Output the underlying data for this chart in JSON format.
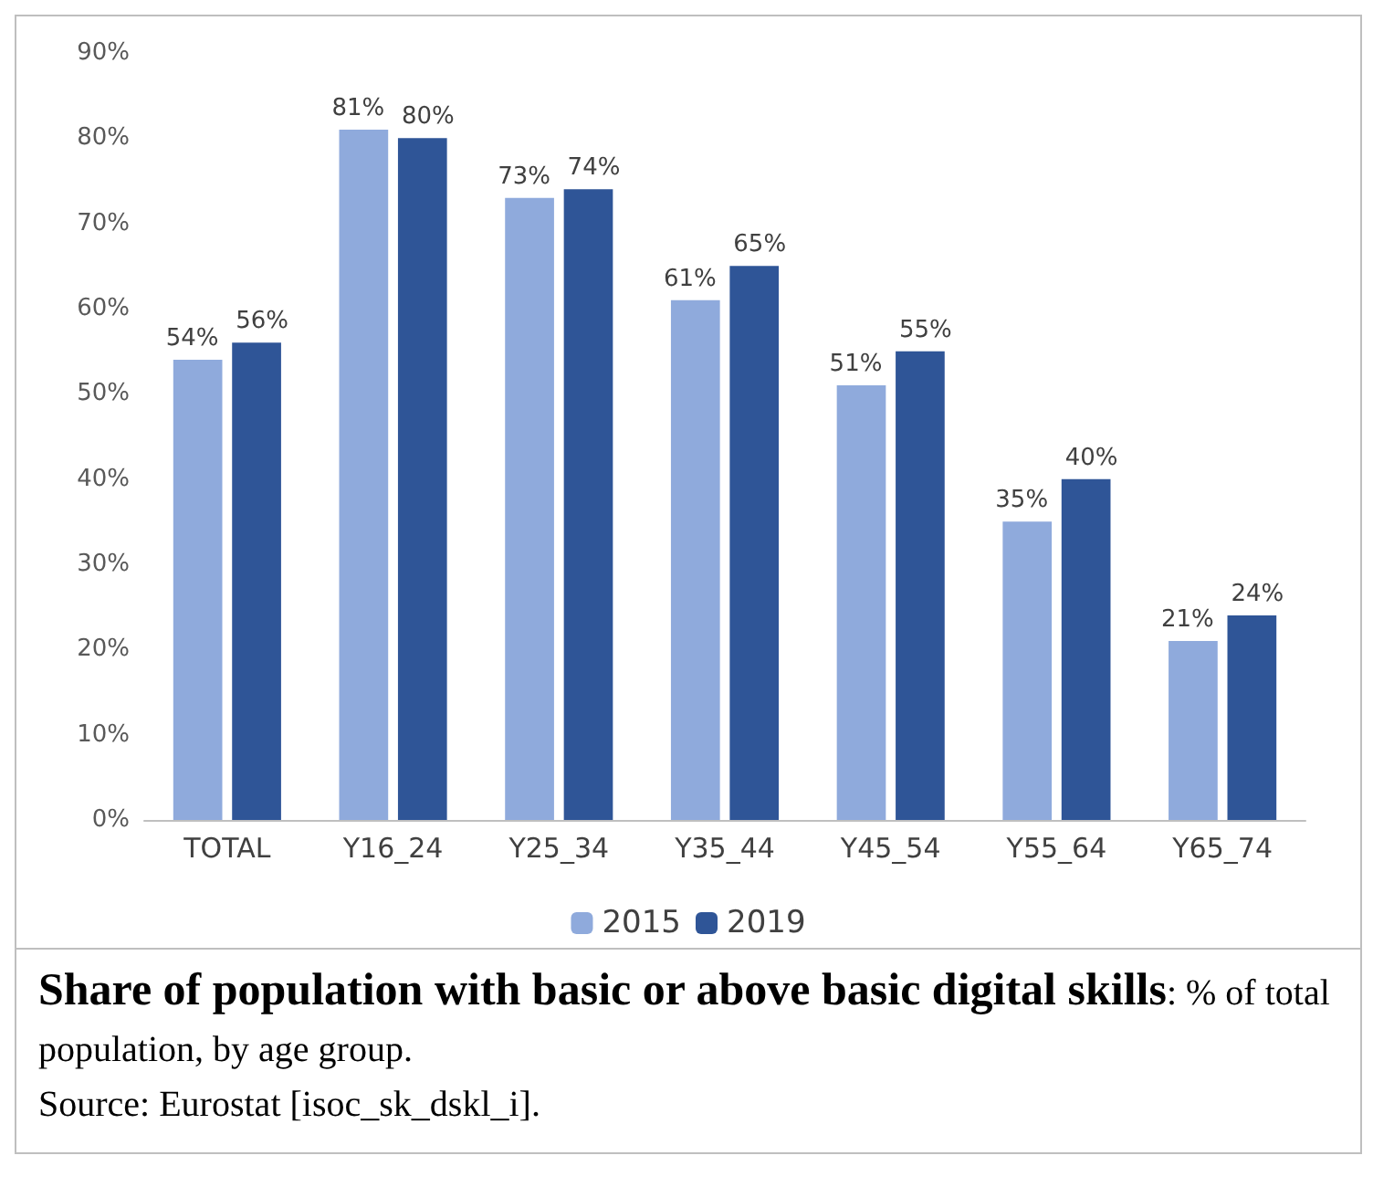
{
  "chart_data": {
    "type": "bar",
    "title": "Share of population with basic or above basic digital skills",
    "subtitle": ": % of total population, by age group.",
    "annotations": [
      "Source: Eurostat [isoc_sk_dskl_i]."
    ],
    "categories": [
      "TOTAL",
      "Y16_24",
      "Y25_34",
      "Y35_44",
      "Y45_54",
      "Y55_64",
      "Y65_74"
    ],
    "series": [
      {
        "name": "2015",
        "color": "#8faadc",
        "values": [
          54,
          81,
          73,
          61,
          51,
          35,
          21
        ],
        "value_labels": [
          "54%",
          "81%",
          "73%",
          "61%",
          "51%",
          "35%",
          "21%"
        ]
      },
      {
        "name": "2019",
        "color": "#2f5597",
        "values": [
          56,
          80,
          74,
          65,
          55,
          40,
          24
        ],
        "value_labels": [
          "56%",
          "80%",
          "74%",
          "65%",
          "55%",
          "40%",
          "24%"
        ]
      }
    ],
    "ylim": [
      0,
      90
    ],
    "yticks": [
      {
        "value": 0,
        "label": "0%"
      },
      {
        "value": 10,
        "label": "10%"
      },
      {
        "value": 20,
        "label": "20%"
      },
      {
        "value": 30,
        "label": "30%"
      },
      {
        "value": 40,
        "label": "40%"
      },
      {
        "value": 50,
        "label": "50%"
      },
      {
        "value": 60,
        "label": "60%"
      },
      {
        "value": 70,
        "label": "70%"
      },
      {
        "value": 80,
        "label": "80%"
      },
      {
        "value": 90,
        "label": "90%"
      }
    ],
    "grid": false,
    "legend": "bottom"
  }
}
